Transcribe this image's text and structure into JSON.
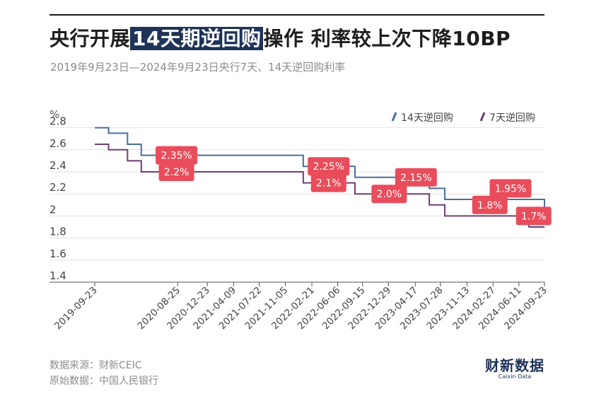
{
  "header": {
    "title_before": "央行开展",
    "title_highlight": "14天期逆回购",
    "title_after": "操作 利率较上次下降10BP",
    "subtitle": "2019年9月23日—2024年9月23日央行7天、14天逆回购利率"
  },
  "footer": {
    "source": "数据来源：财新CEIC",
    "origin": "原始数据：中国人民银行"
  },
  "logo": {
    "cn": "财新数据",
    "en": "Caixin Data"
  },
  "colors": {
    "series14": "#4a6f99",
    "series7": "#6e3f73",
    "label_bg": "#e94d5b",
    "grid": "#e2e2e2"
  },
  "chart_data": {
    "type": "line",
    "ylabel": "%",
    "ylim": [
      1.4,
      2.9
    ],
    "yticks": [
      "2.8",
      "2.6",
      "2.4",
      "2.2",
      "2",
      "1.8",
      "1.6",
      "1.4"
    ],
    "xlim": [
      "2019-09-23",
      "2024-09-23"
    ],
    "xticks": [
      "2019-09-23",
      "2020-08-25",
      "2020-12-23",
      "2021-04-09",
      "2021-07-22",
      "2021-11-05",
      "2022-02-21",
      "2022-06-06",
      "2022-09-15",
      "2022-12-29",
      "2023-04-17",
      "2023-07-28",
      "2023-11-13",
      "2024-02-27",
      "2024-06-11",
      "2024-09-23"
    ],
    "legend_position": "top-right",
    "series": [
      {
        "name": "14天逆回购",
        "steps": [
          [
            "2019-09-23",
            2.8
          ],
          [
            "2019-11-18",
            2.75
          ],
          [
            "2020-02-03",
            2.65
          ],
          [
            "2020-03-30",
            2.55
          ],
          [
            "2022-01-17",
            2.45
          ],
          [
            "2022-08-15",
            2.35
          ],
          [
            "2023-06-13",
            2.25
          ],
          [
            "2023-08-15",
            2.15
          ],
          [
            "2024-09-20",
            2.15
          ],
          [
            "2024-09-23",
            2.05
          ]
        ]
      },
      {
        "name": "7天逆回购",
        "steps": [
          [
            "2019-09-23",
            2.65
          ],
          [
            "2019-11-18",
            2.6
          ],
          [
            "2020-02-03",
            2.5
          ],
          [
            "2020-03-30",
            2.4
          ],
          [
            "2022-01-17",
            2.3
          ],
          [
            "2022-08-15",
            2.2
          ],
          [
            "2023-06-13",
            2.1
          ],
          [
            "2023-08-15",
            2.0
          ],
          [
            "2024-07-22",
            1.9
          ],
          [
            "2024-09-23",
            1.9
          ]
        ]
      }
    ],
    "annotations": [
      {
        "text": "2.35%",
        "x": "2020-08-20",
        "y": 2.55
      },
      {
        "text": "2.2%",
        "x": "2020-08-20",
        "y": 2.4
      },
      {
        "text": "2.25%",
        "x": "2022-04-30",
        "y": 2.45
      },
      {
        "text": "2.1%",
        "x": "2022-04-30",
        "y": 2.3
      },
      {
        "text": "2.0%",
        "x": "2023-01-01",
        "y": 2.2
      },
      {
        "text": "2.15%",
        "x": "2023-04-20",
        "y": 2.35
      },
      {
        "text": "1.95%",
        "x": "2024-05-08",
        "y": 2.25
      },
      {
        "text": "1.8%",
        "x": "2024-02-14",
        "y": 2.1
      },
      {
        "text": "1.7%",
        "x": "2024-08-10",
        "y": 2.0
      }
    ]
  }
}
